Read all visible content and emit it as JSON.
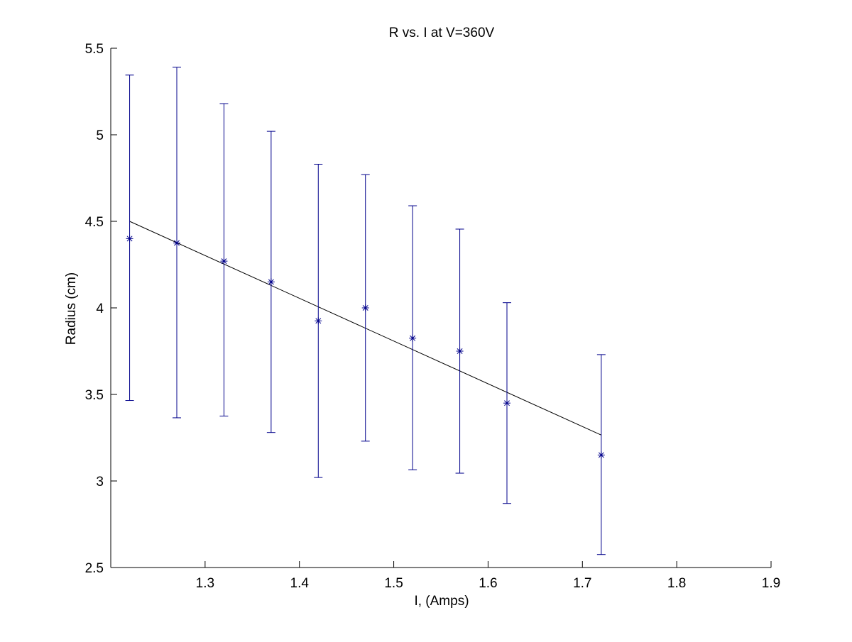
{
  "chart_data": {
    "type": "scatter",
    "title": "R vs. I at V=360V",
    "xlabel": "I, (Amps)",
    "ylabel": "Radius (cm)",
    "xlim": [
      1.2,
      1.9
    ],
    "ylim": [
      2.5,
      5.5
    ],
    "x_ticks": [
      1.3,
      1.4,
      1.5,
      1.6,
      1.7,
      1.8,
      1.9
    ],
    "y_ticks": [
      2.5,
      3,
      3.5,
      4,
      4.5,
      5,
      5.5
    ],
    "grid": false,
    "legend": "none",
    "colors": {
      "data": "#00008b",
      "fit": "#000000",
      "axes": "#000000"
    },
    "series": [
      {
        "marker": "asterisk",
        "x": [
          1.22,
          1.27,
          1.32,
          1.37,
          1.42,
          1.47,
          1.52,
          1.57,
          1.62,
          1.72
        ],
        "y": [
          4.4,
          4.375,
          4.27,
          4.15,
          3.925,
          4.0,
          3.825,
          3.75,
          3.45,
          3.15
        ],
        "error_low": [
          3.465,
          3.365,
          3.375,
          3.28,
          3.02,
          3.23,
          3.065,
          3.045,
          2.87,
          2.575
        ],
        "error_high": [
          5.345,
          5.39,
          5.18,
          5.02,
          4.83,
          4.77,
          4.59,
          4.455,
          4.03,
          3.73
        ]
      }
    ],
    "fit_line": {
      "x": [
        1.22,
        1.72
      ],
      "y": [
        4.5,
        3.265
      ]
    }
  }
}
